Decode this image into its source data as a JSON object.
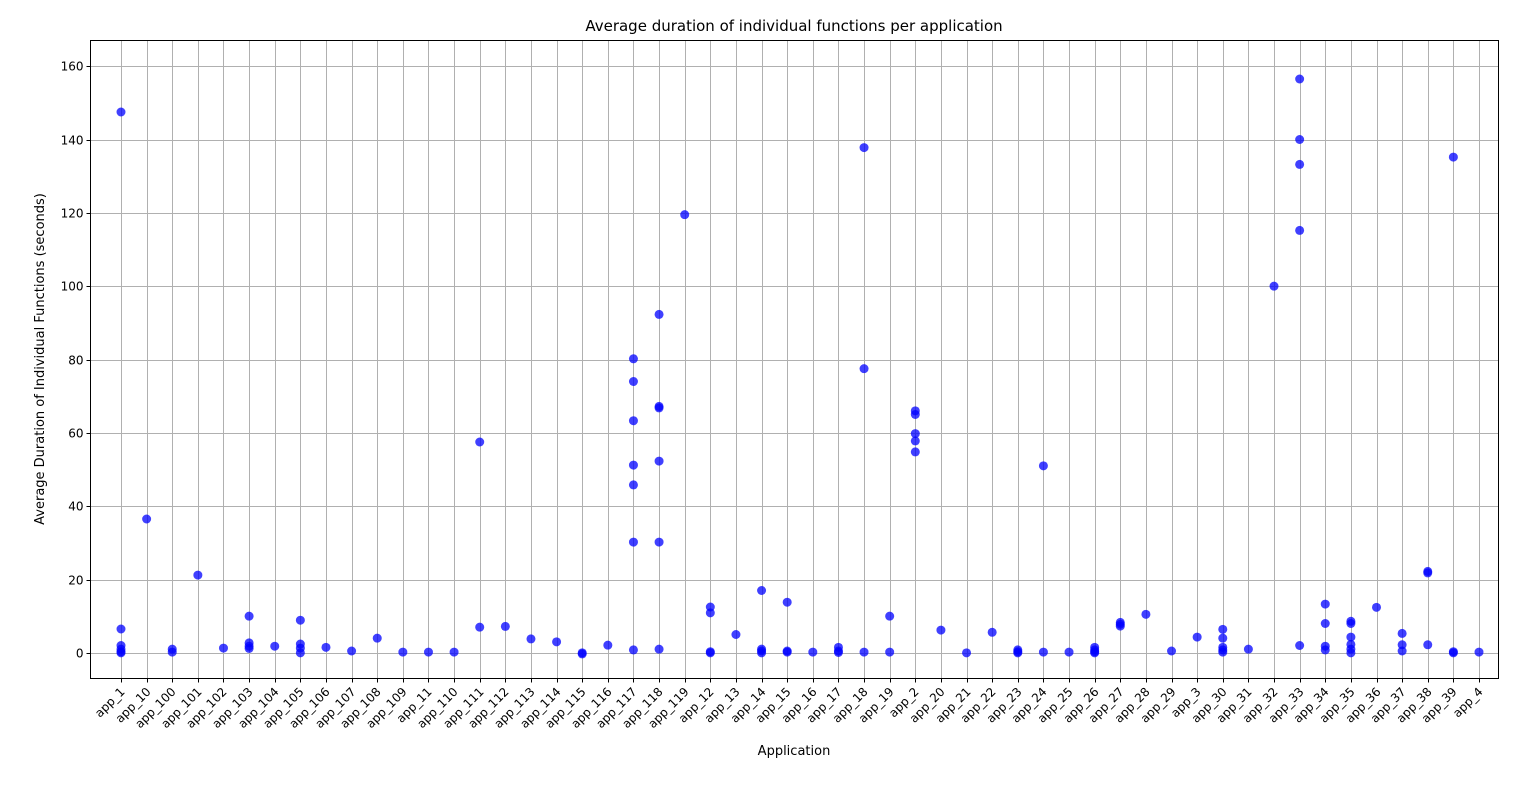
{
  "chart_data": {
    "type": "scatter",
    "title": "Average duration of individual functions per application",
    "xlabel": "Application",
    "ylabel": "Average Duration of Individual Functions (seconds)",
    "ylim": [
      -7,
      167
    ],
    "yticks": [
      0,
      20,
      40,
      60,
      80,
      100,
      120,
      140,
      160
    ],
    "grid": true,
    "point_color": "#0000ff",
    "categories": [
      "app_1",
      "app_10",
      "app_100",
      "app_101",
      "app_102",
      "app_103",
      "app_104",
      "app_105",
      "app_106",
      "app_107",
      "app_108",
      "app_109",
      "app_11",
      "app_110",
      "app_111",
      "app_112",
      "app_113",
      "app_114",
      "app_115",
      "app_116",
      "app_117",
      "app_118",
      "app_119",
      "app_12",
      "app_13",
      "app_14",
      "app_15",
      "app_16",
      "app_17",
      "app_18",
      "app_19",
      "app_2",
      "app_20",
      "app_21",
      "app_22",
      "app_23",
      "app_24",
      "app_25",
      "app_26",
      "app_27",
      "app_28",
      "app_29",
      "app_3",
      "app_30",
      "app_31",
      "app_32",
      "app_33",
      "app_34",
      "app_35",
      "app_36",
      "app_37",
      "app_38",
      "app_39",
      "app_4"
    ],
    "points": [
      {
        "x": "app_1",
        "y": 147.5
      },
      {
        "x": "app_1",
        "y": 6.5
      },
      {
        "x": "app_1",
        "y": 2
      },
      {
        "x": "app_1",
        "y": 1
      },
      {
        "x": "app_1",
        "y": 0.3
      },
      {
        "x": "app_1",
        "y": 0
      },
      {
        "x": "app_10",
        "y": 36.5
      },
      {
        "x": "app_100",
        "y": 1
      },
      {
        "x": "app_100",
        "y": 0.2
      },
      {
        "x": "app_101",
        "y": 21.2
      },
      {
        "x": "app_102",
        "y": 1.3
      },
      {
        "x": "app_103",
        "y": 10
      },
      {
        "x": "app_103",
        "y": 2.7
      },
      {
        "x": "app_103",
        "y": 1.8
      },
      {
        "x": "app_103",
        "y": 1.2
      },
      {
        "x": "app_104",
        "y": 1.8
      },
      {
        "x": "app_105",
        "y": 8.9
      },
      {
        "x": "app_105",
        "y": 2.4
      },
      {
        "x": "app_105",
        "y": 1.3
      },
      {
        "x": "app_105",
        "y": 0
      },
      {
        "x": "app_106",
        "y": 1.5
      },
      {
        "x": "app_107",
        "y": 0.5
      },
      {
        "x": "app_108",
        "y": 4
      },
      {
        "x": "app_109",
        "y": 0.2
      },
      {
        "x": "app_11",
        "y": 0.2
      },
      {
        "x": "app_110",
        "y": 0.2
      },
      {
        "x": "app_111",
        "y": 57.5
      },
      {
        "x": "app_111",
        "y": 7
      },
      {
        "x": "app_112",
        "y": 7.2
      },
      {
        "x": "app_113",
        "y": 3.8
      },
      {
        "x": "app_114",
        "y": 3
      },
      {
        "x": "app_115",
        "y": 0
      },
      {
        "x": "app_115",
        "y": -0.3
      },
      {
        "x": "app_116",
        "y": 2.1
      },
      {
        "x": "app_117",
        "y": 80.2
      },
      {
        "x": "app_117",
        "y": 74
      },
      {
        "x": "app_117",
        "y": 63.3
      },
      {
        "x": "app_117",
        "y": 51.2
      },
      {
        "x": "app_117",
        "y": 45.8
      },
      {
        "x": "app_117",
        "y": 30.2
      },
      {
        "x": "app_117",
        "y": 0.8
      },
      {
        "x": "app_118",
        "y": 92.3
      },
      {
        "x": "app_118",
        "y": 67.2
      },
      {
        "x": "app_118",
        "y": 66.8
      },
      {
        "x": "app_118",
        "y": 52.3
      },
      {
        "x": "app_118",
        "y": 30.2
      },
      {
        "x": "app_118",
        "y": 1
      },
      {
        "x": "app_119",
        "y": 119.5
      },
      {
        "x": "app_12",
        "y": 12.5
      },
      {
        "x": "app_12",
        "y": 10.9
      },
      {
        "x": "app_12",
        "y": 0.3
      },
      {
        "x": "app_12",
        "y": 0
      },
      {
        "x": "app_13",
        "y": 5
      },
      {
        "x": "app_14",
        "y": 17
      },
      {
        "x": "app_14",
        "y": 1
      },
      {
        "x": "app_14",
        "y": 0.5
      },
      {
        "x": "app_14",
        "y": 0
      },
      {
        "x": "app_15",
        "y": 13.8
      },
      {
        "x": "app_15",
        "y": 0.5
      },
      {
        "x": "app_15",
        "y": 0.2
      },
      {
        "x": "app_16",
        "y": 0.2
      },
      {
        "x": "app_17",
        "y": 1.5
      },
      {
        "x": "app_17",
        "y": 0.5
      },
      {
        "x": "app_17",
        "y": 0.1
      },
      {
        "x": "app_18",
        "y": 137.8
      },
      {
        "x": "app_18",
        "y": 77.5
      },
      {
        "x": "app_18",
        "y": 0.2
      },
      {
        "x": "app_19",
        "y": 10
      },
      {
        "x": "app_19",
        "y": 0.2
      },
      {
        "x": "app_2",
        "y": 66
      },
      {
        "x": "app_2",
        "y": 65
      },
      {
        "x": "app_2",
        "y": 59.8
      },
      {
        "x": "app_2",
        "y": 57.8
      },
      {
        "x": "app_2",
        "y": 54.8
      },
      {
        "x": "app_20",
        "y": 6.2
      },
      {
        "x": "app_21",
        "y": 0
      },
      {
        "x": "app_22",
        "y": 5.6
      },
      {
        "x": "app_23",
        "y": 0.8
      },
      {
        "x": "app_23",
        "y": 0.3
      },
      {
        "x": "app_23",
        "y": 0
      },
      {
        "x": "app_24",
        "y": 51
      },
      {
        "x": "app_24",
        "y": 0.2
      },
      {
        "x": "app_25",
        "y": 0.2
      },
      {
        "x": "app_26",
        "y": 1.5
      },
      {
        "x": "app_26",
        "y": 0.8
      },
      {
        "x": "app_26",
        "y": 0.3
      },
      {
        "x": "app_26",
        "y": 0
      },
      {
        "x": "app_27",
        "y": 8.3
      },
      {
        "x": "app_27",
        "y": 7.8
      },
      {
        "x": "app_27",
        "y": 7.3
      },
      {
        "x": "app_28",
        "y": 10.5
      },
      {
        "x": "app_29",
        "y": 0.5
      },
      {
        "x": "app_3",
        "y": 4.3
      },
      {
        "x": "app_30",
        "y": 6.4
      },
      {
        "x": "app_30",
        "y": 4
      },
      {
        "x": "app_30",
        "y": 1.5
      },
      {
        "x": "app_30",
        "y": 0.8
      },
      {
        "x": "app_30",
        "y": 0.2
      },
      {
        "x": "app_31",
        "y": 1
      },
      {
        "x": "app_32",
        "y": 100
      },
      {
        "x": "app_33",
        "y": 156.5
      },
      {
        "x": "app_33",
        "y": 140
      },
      {
        "x": "app_33",
        "y": 133.2
      },
      {
        "x": "app_33",
        "y": 115.2
      },
      {
        "x": "app_33",
        "y": 2
      },
      {
        "x": "app_34",
        "y": 13.3
      },
      {
        "x": "app_34",
        "y": 8
      },
      {
        "x": "app_34",
        "y": 1.8
      },
      {
        "x": "app_34",
        "y": 0.8
      },
      {
        "x": "app_35",
        "y": 8.6
      },
      {
        "x": "app_35",
        "y": 8
      },
      {
        "x": "app_35",
        "y": 4.3
      },
      {
        "x": "app_35",
        "y": 2.3
      },
      {
        "x": "app_35",
        "y": 1
      },
      {
        "x": "app_35",
        "y": 0
      },
      {
        "x": "app_36",
        "y": 12.4
      },
      {
        "x": "app_37",
        "y": 5.3
      },
      {
        "x": "app_37",
        "y": 2.2
      },
      {
        "x": "app_37",
        "y": 0.5
      },
      {
        "x": "app_38",
        "y": 22.2
      },
      {
        "x": "app_38",
        "y": 21.8
      },
      {
        "x": "app_38",
        "y": 2.2
      },
      {
        "x": "app_39",
        "y": 135.2
      },
      {
        "x": "app_39",
        "y": 0.3
      },
      {
        "x": "app_39",
        "y": 0
      },
      {
        "x": "app_4",
        "y": 0.2
      }
    ]
  }
}
